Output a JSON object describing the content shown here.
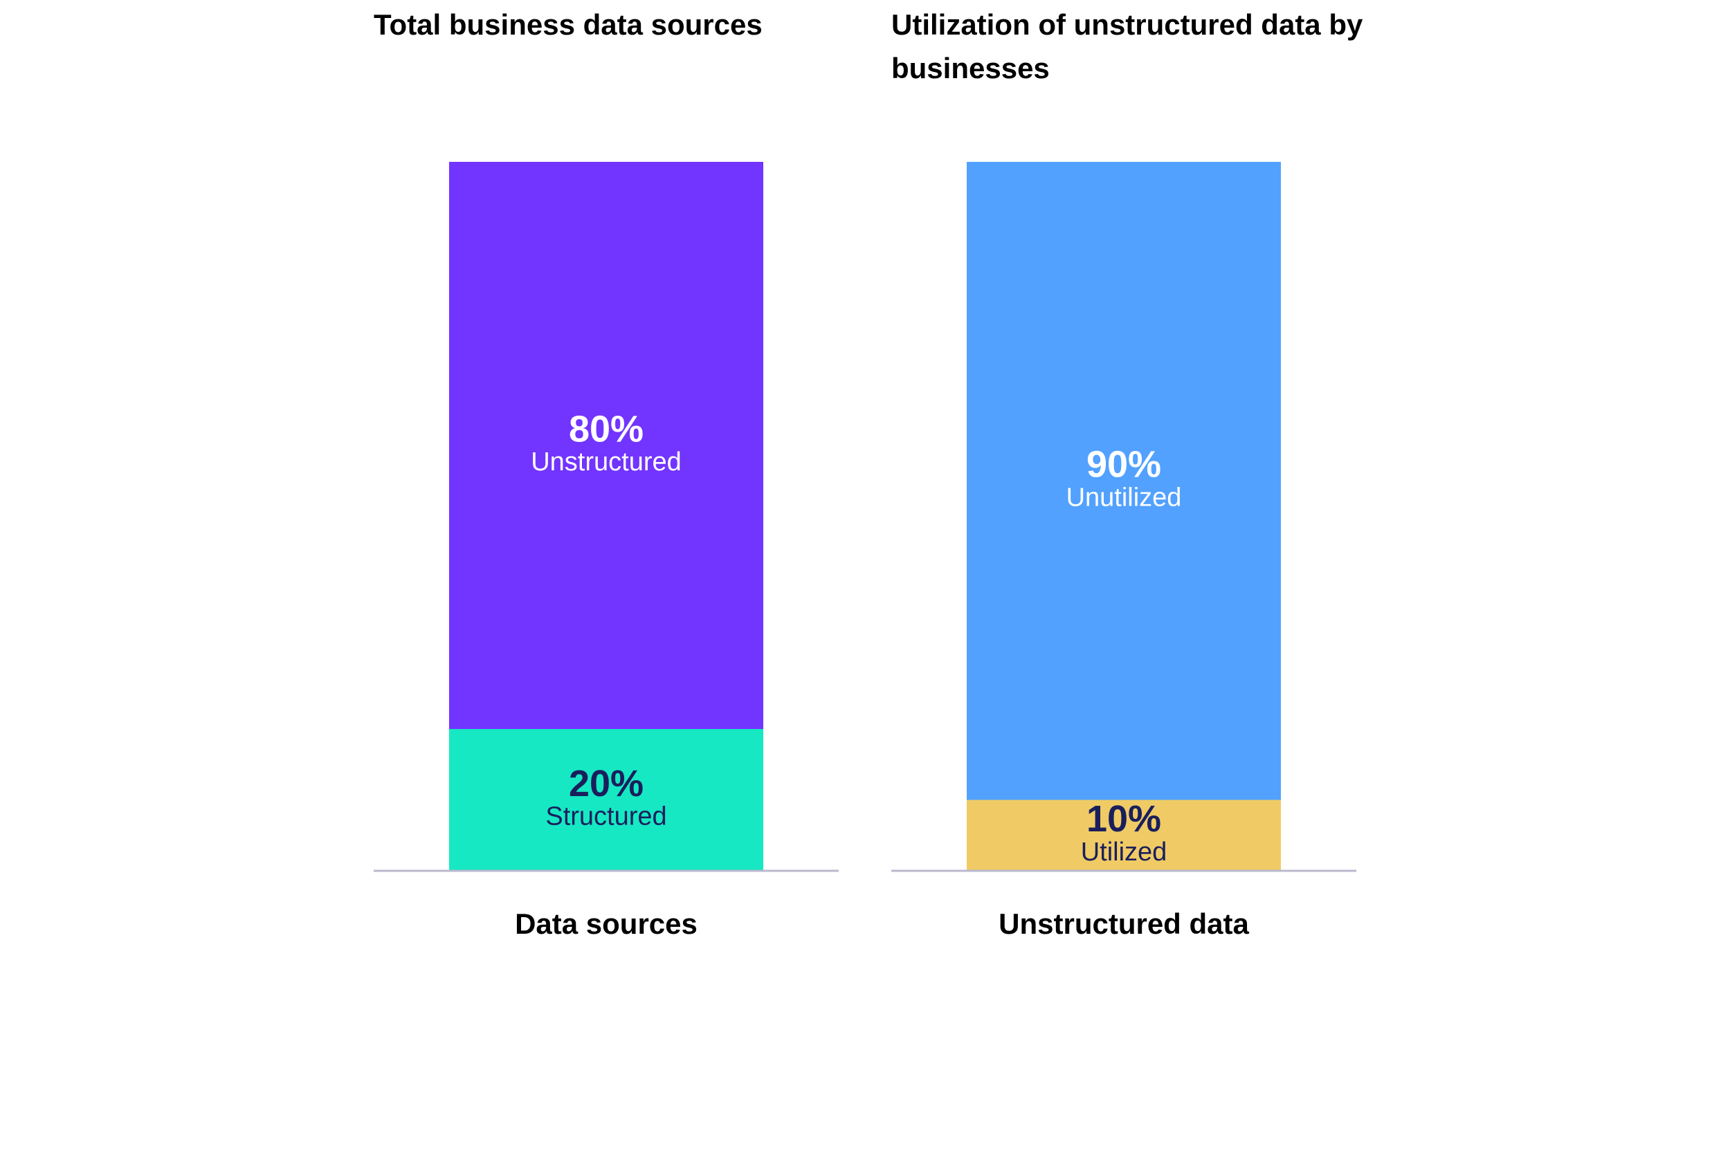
{
  "chart_data": [
    {
      "type": "bar",
      "stacked": true,
      "title": "Total business data sources",
      "categories": [
        "Data sources"
      ],
      "ylim": [
        0,
        100
      ],
      "series": [
        {
          "name": "Structured",
          "color": "#16e8c3",
          "label_color": "#1a1f5c",
          "values": [
            20
          ],
          "value_labels": [
            "20%"
          ]
        },
        {
          "name": "Unstructured",
          "color": "#7234ff",
          "label_color": "#ffffff",
          "values": [
            80
          ],
          "value_labels": [
            "80%"
          ]
        }
      ]
    },
    {
      "type": "bar",
      "stacked": true,
      "title": "Utilization of unstructured data by businesses",
      "categories": [
        "Unstructured data"
      ],
      "ylim": [
        0,
        100
      ],
      "series": [
        {
          "name": "Utilized",
          "color": "#f0cb65",
          "label_color": "#1a1f5c",
          "values": [
            10
          ],
          "value_labels": [
            "10%"
          ]
        },
        {
          "name": "Unutilized",
          "color": "#52a1ff",
          "label_color": "#ffffff",
          "values": [
            90
          ],
          "value_labels": [
            "90%"
          ]
        }
      ]
    }
  ]
}
